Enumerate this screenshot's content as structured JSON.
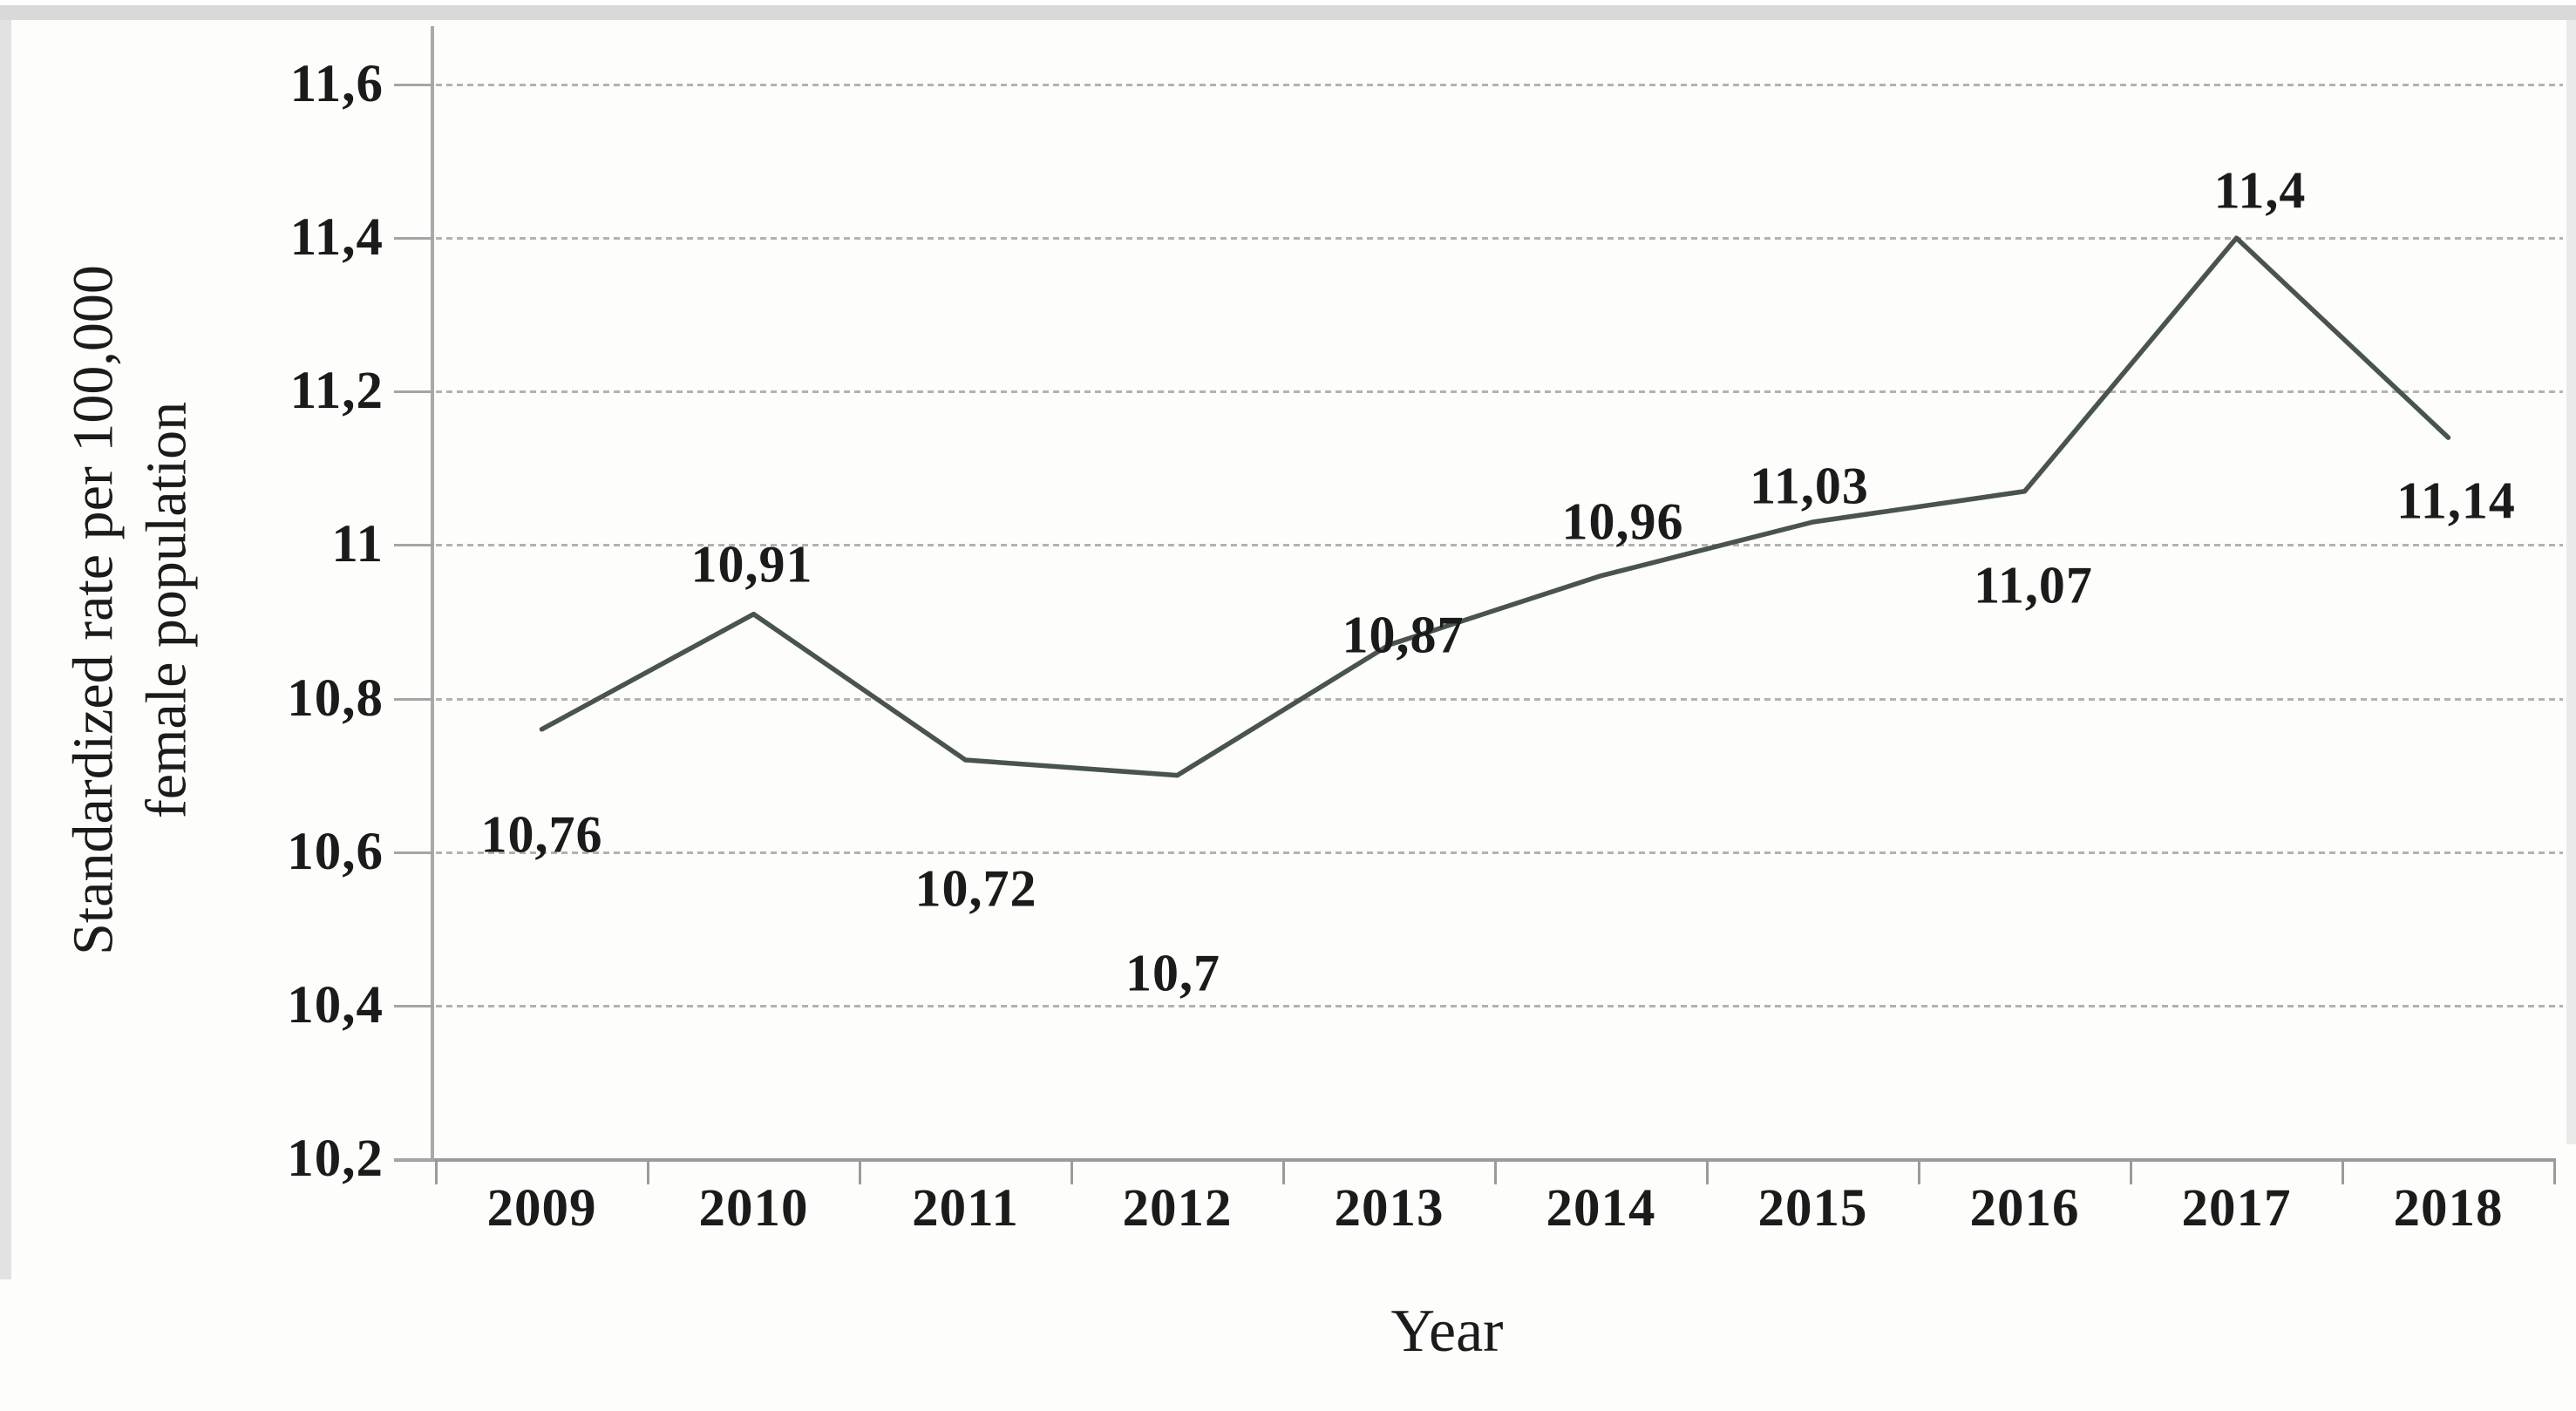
{
  "figure": {
    "x_axis_title": "Year",
    "y_axis_title_line1": "Standardized rate per 100,000",
    "y_axis_title_line2": "female population"
  },
  "chart_data": {
    "type": "line",
    "title": "",
    "xlabel": "Year",
    "ylabel": "Standardized rate per 100,000 female population",
    "x": [
      "2009",
      "2010",
      "2011",
      "2012",
      "2013",
      "2014",
      "2015",
      "2016",
      "2017",
      "2018"
    ],
    "values": [
      10.76,
      10.91,
      10.72,
      10.7,
      10.87,
      10.96,
      11.03,
      11.07,
      11.4,
      11.14
    ],
    "point_labels": [
      "10,76",
      "10,91",
      "10,72",
      "10,7",
      "10,87",
      "10,96",
      "11,03",
      "11,07",
      "11,4",
      "11,14"
    ],
    "yticks": {
      "values": [
        10.2,
        10.4,
        10.6,
        10.8,
        11.0,
        11.2,
        11.4,
        11.6
      ],
      "labels": [
        "10,2",
        "10,4",
        "10,6",
        "10,8",
        "11",
        "11,2",
        "11,4",
        "11,6"
      ]
    },
    "ylim": [
      10.2,
      11.6
    ],
    "grid": "horizontal-dotted",
    "legend": "none",
    "line_color": "#49544e",
    "grid_color": "#b2b2b2",
    "axis_color": "#9b9b9b",
    "text_color": "#1b1b1b"
  }
}
